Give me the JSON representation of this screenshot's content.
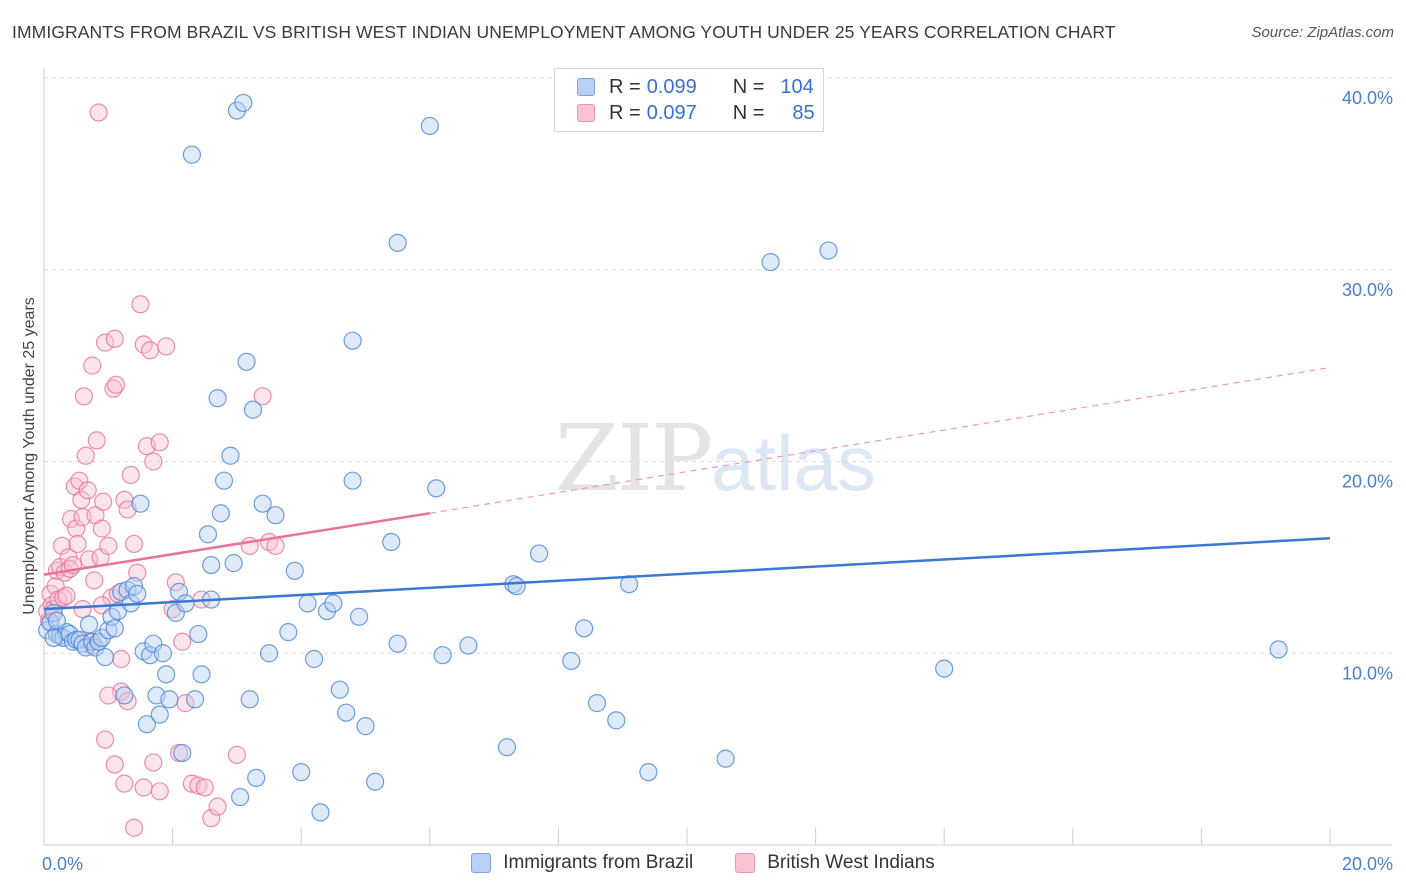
{
  "title": "IMMIGRANTS FROM BRAZIL VS BRITISH WEST INDIAN UNEMPLOYMENT AMONG YOUTH UNDER 25 YEARS CORRELATION CHART",
  "source": "Source: ZipAtlas.com",
  "watermark": {
    "zip": "ZIP",
    "atlas": "atlas"
  },
  "legend": {
    "rows": [
      {
        "r_label": "R =",
        "r_value": "0.099",
        "n_label": "N =",
        "n_value": "104"
      },
      {
        "r_label": "R =",
        "r_value": "0.097",
        "n_label": "N =",
        "n_value": "85"
      }
    ]
  },
  "bottom_legend": [
    "Immigrants from Brazil",
    "British West Indians"
  ],
  "colors": {
    "blue": "#4a86d8",
    "blue_fill": "#b8d0f2",
    "pink": "#e8739a",
    "pink_fill": "#f8c4d2",
    "tick": "#4a7fd0"
  },
  "chart_data": {
    "type": "scatter",
    "title": "IMMIGRANTS FROM BRAZIL VS BRITISH WEST INDIAN UNEMPLOYMENT AMONG YOUTH UNDER 25 YEARS CORRELATION CHART",
    "xlabel": "",
    "ylabel": "Unemployment Among Youth under 25 years",
    "xlim": [
      0,
      20
    ],
    "ylim": [
      0,
      40
    ],
    "x_tick_labels": [
      "0.0%",
      "20.0%"
    ],
    "y_ticks": [
      10,
      20,
      30,
      40
    ],
    "y_tick_labels": [
      "10.0%",
      "20.0%",
      "30.0%",
      "40.0%"
    ],
    "series": [
      {
        "name": "Immigrants from Brazil",
        "r": 0.099,
        "n": 104,
        "trend": {
          "x": [
            0,
            20
          ],
          "y": [
            12.3,
            16.0
          ]
        },
        "points": [
          [
            0.05,
            11.2
          ],
          [
            0.1,
            11.6
          ],
          [
            0.15,
            12.1
          ],
          [
            0.2,
            11.0
          ],
          [
            0.25,
            10.9
          ],
          [
            0.3,
            10.8
          ],
          [
            0.35,
            11.1
          ],
          [
            0.4,
            11.0
          ],
          [
            0.45,
            10.6
          ],
          [
            0.5,
            10.7
          ],
          [
            0.55,
            10.7
          ],
          [
            0.6,
            10.5
          ],
          [
            0.65,
            10.3
          ],
          [
            0.7,
            11.5
          ],
          [
            0.75,
            10.6
          ],
          [
            0.8,
            10.3
          ],
          [
            0.85,
            10.6
          ],
          [
            0.9,
            10.8
          ],
          [
            0.95,
            9.8
          ],
          [
            1.0,
            11.2
          ],
          [
            1.05,
            11.9
          ],
          [
            1.1,
            11.3
          ],
          [
            1.15,
            12.2
          ],
          [
            1.2,
            13.2
          ],
          [
            1.25,
            7.8
          ],
          [
            1.3,
            13.3
          ],
          [
            1.35,
            12.6
          ],
          [
            1.4,
            13.5
          ],
          [
            1.45,
            13.1
          ],
          [
            1.5,
            17.8
          ],
          [
            1.55,
            10.1
          ],
          [
            1.6,
            6.3
          ],
          [
            1.65,
            9.9
          ],
          [
            1.7,
            10.5
          ],
          [
            1.75,
            7.8
          ],
          [
            1.8,
            6.8
          ],
          [
            1.85,
            10.0
          ],
          [
            1.9,
            8.9
          ],
          [
            1.95,
            7.6
          ],
          [
            2.05,
            12.1
          ],
          [
            2.1,
            13.2
          ],
          [
            2.15,
            4.8
          ],
          [
            2.2,
            12.6
          ],
          [
            2.3,
            36.0
          ],
          [
            2.35,
            7.6
          ],
          [
            2.4,
            11.0
          ],
          [
            2.45,
            8.9
          ],
          [
            2.55,
            16.2
          ],
          [
            2.6,
            12.8
          ],
          [
            2.6,
            14.6
          ],
          [
            2.7,
            23.3
          ],
          [
            2.75,
            17.3
          ],
          [
            2.8,
            19.0
          ],
          [
            2.9,
            20.3
          ],
          [
            2.95,
            14.7
          ],
          [
            3.0,
            38.3
          ],
          [
            3.05,
            2.5
          ],
          [
            3.1,
            38.7
          ],
          [
            3.15,
            25.2
          ],
          [
            3.2,
            7.6
          ],
          [
            3.25,
            22.7
          ],
          [
            3.3,
            3.5
          ],
          [
            3.4,
            17.8
          ],
          [
            3.5,
            10.0
          ],
          [
            3.6,
            17.2
          ],
          [
            3.8,
            11.1
          ],
          [
            3.9,
            14.3
          ],
          [
            4.0,
            3.8
          ],
          [
            4.1,
            12.6
          ],
          [
            4.2,
            9.7
          ],
          [
            4.3,
            1.7
          ],
          [
            4.4,
            12.2
          ],
          [
            4.5,
            12.6
          ],
          [
            4.6,
            8.1
          ],
          [
            4.7,
            6.9
          ],
          [
            4.8,
            26.3
          ],
          [
            4.8,
            19.0
          ],
          [
            4.9,
            11.9
          ],
          [
            5.0,
            6.2
          ],
          [
            5.15,
            3.3
          ],
          [
            5.4,
            15.8
          ],
          [
            5.5,
            31.4
          ],
          [
            5.5,
            10.5
          ],
          [
            6.0,
            37.5
          ],
          [
            6.1,
            18.6
          ],
          [
            6.2,
            9.9
          ],
          [
            6.6,
            10.4
          ],
          [
            7.2,
            5.1
          ],
          [
            7.3,
            13.6
          ],
          [
            7.35,
            13.5
          ],
          [
            7.7,
            15.2
          ],
          [
            8.2,
            9.6
          ],
          [
            8.4,
            11.3
          ],
          [
            8.6,
            7.4
          ],
          [
            8.9,
            6.5
          ],
          [
            9.1,
            13.6
          ],
          [
            9.4,
            3.8
          ],
          [
            10.6,
            4.5
          ],
          [
            11.3,
            30.4
          ],
          [
            12.2,
            31.0
          ],
          [
            14.0,
            9.2
          ],
          [
            19.2,
            10.2
          ],
          [
            0.15,
            10.8
          ],
          [
            0.2,
            11.7
          ]
        ]
      },
      {
        "name": "British West Indians",
        "r": 0.097,
        "n": 85,
        "trend": {
          "x": [
            0,
            6.0
          ],
          "y": [
            14.1,
            17.3
          ]
        },
        "trend_dashed": {
          "x": [
            6.0,
            20
          ],
          "y": [
            17.3,
            24.9
          ]
        },
        "points": [
          [
            0.05,
            12.2
          ],
          [
            0.08,
            11.7
          ],
          [
            0.1,
            13.1
          ],
          [
            0.12,
            12.5
          ],
          [
            0.15,
            12.3
          ],
          [
            0.18,
            13.5
          ],
          [
            0.2,
            14.3
          ],
          [
            0.22,
            12.8
          ],
          [
            0.25,
            14.5
          ],
          [
            0.28,
            15.6
          ],
          [
            0.3,
            12.9
          ],
          [
            0.32,
            14.2
          ],
          [
            0.35,
            13.0
          ],
          [
            0.38,
            15.0
          ],
          [
            0.4,
            14.4
          ],
          [
            0.42,
            17.0
          ],
          [
            0.45,
            14.6
          ],
          [
            0.48,
            18.7
          ],
          [
            0.5,
            16.5
          ],
          [
            0.52,
            15.7
          ],
          [
            0.55,
            19.0
          ],
          [
            0.58,
            18.0
          ],
          [
            0.6,
            17.1
          ],
          [
            0.62,
            23.4
          ],
          [
            0.65,
            20.3
          ],
          [
            0.68,
            18.5
          ],
          [
            0.7,
            14.9
          ],
          [
            0.72,
            10.6
          ],
          [
            0.75,
            25.0
          ],
          [
            0.78,
            13.8
          ],
          [
            0.8,
            17.2
          ],
          [
            0.82,
            21.1
          ],
          [
            0.85,
            38.2
          ],
          [
            0.88,
            15.0
          ],
          [
            0.9,
            16.5
          ],
          [
            0.92,
            17.9
          ],
          [
            0.95,
            26.2
          ],
          [
            1.0,
            15.6
          ],
          [
            1.05,
            12.9
          ],
          [
            1.08,
            23.8
          ],
          [
            1.1,
            26.4
          ],
          [
            1.12,
            24.0
          ],
          [
            1.15,
            13.1
          ],
          [
            1.2,
            9.7
          ],
          [
            1.25,
            18.0
          ],
          [
            1.3,
            17.5
          ],
          [
            1.35,
            19.3
          ],
          [
            1.4,
            15.7
          ],
          [
            1.45,
            14.2
          ],
          [
            1.5,
            28.2
          ],
          [
            1.55,
            26.1
          ],
          [
            1.6,
            20.8
          ],
          [
            1.65,
            25.8
          ],
          [
            1.7,
            20.0
          ],
          [
            1.8,
            21.0
          ],
          [
            1.9,
            26.0
          ],
          [
            2.0,
            12.3
          ],
          [
            2.05,
            13.7
          ],
          [
            2.1,
            4.8
          ],
          [
            2.2,
            7.4
          ],
          [
            2.3,
            3.2
          ],
          [
            2.4,
            3.1
          ],
          [
            2.5,
            3.0
          ],
          [
            2.6,
            1.4
          ],
          [
            2.7,
            2.0
          ],
          [
            3.0,
            4.7
          ],
          [
            3.2,
            15.6
          ],
          [
            3.4,
            23.4
          ],
          [
            3.5,
            15.8
          ],
          [
            3.6,
            15.6
          ],
          [
            1.2,
            8.0
          ],
          [
            0.75,
            10.4
          ],
          [
            1.3,
            7.5
          ],
          [
            1.1,
            4.2
          ],
          [
            0.95,
            5.5
          ],
          [
            1.4,
            0.9
          ],
          [
            2.15,
            10.6
          ],
          [
            1.55,
            3.0
          ],
          [
            1.7,
            4.3
          ],
          [
            1.8,
            2.8
          ],
          [
            1.25,
            3.2
          ],
          [
            2.45,
            12.8
          ],
          [
            1.0,
            7.8
          ],
          [
            0.6,
            12.3
          ],
          [
            0.9,
            12.5
          ]
        ]
      }
    ]
  }
}
